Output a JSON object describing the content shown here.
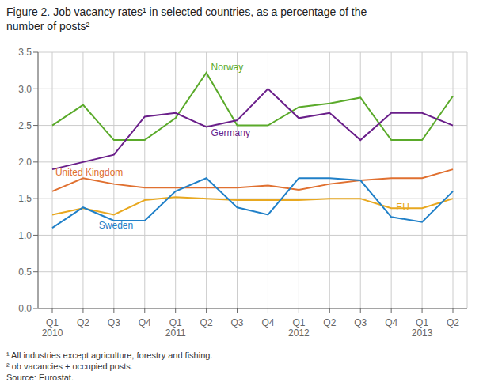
{
  "chart_data": {
    "type": "line",
    "title": "Figure 2. Job vacancy rates¹ in selected countries, as a percentage of the\nnumber of posts²",
    "annotations": [
      "¹ All industries except agriculture, forestry and fishing.",
      "² ob vacancies + occupied posts.",
      "Source: Eurostat."
    ],
    "categories": [
      "Q1\n2010",
      "Q2",
      "Q3",
      "Q4",
      "Q1\n2011",
      "Q2",
      "Q3",
      "Q4",
      "Q1\n2012",
      "Q2",
      "Q3",
      "Q4",
      "Q1\n2013",
      "Q2"
    ],
    "ylim": [
      0.0,
      3.5
    ],
    "yticks": [
      {
        "value": 0.0,
        "label": "0.0"
      },
      0.5,
      {
        "value": 1.0,
        "label": "1.0"
      },
      1.5,
      {
        "value": 2.0,
        "label": "2.0"
      },
      2.5,
      {
        "value": 3.0,
        "label": "3.0"
      },
      3.5
    ],
    "grid": true,
    "series": [
      {
        "name": "Norway",
        "color": "#5aaa2a",
        "values": [
          2.5,
          2.78,
          2.3,
          2.3,
          2.6,
          3.22,
          2.5,
          2.5,
          2.75,
          2.8,
          2.88,
          2.3,
          2.3,
          2.9
        ]
      },
      {
        "name": "Germany",
        "color": "#6a1f8a",
        "values": [
          1.9,
          2.0,
          2.1,
          2.62,
          2.67,
          2.48,
          2.57,
          3.0,
          2.6,
          2.67,
          2.3,
          2.67,
          2.67,
          2.5
        ]
      },
      {
        "name": "United Kingdom",
        "color": "#e07030",
        "values": [
          1.6,
          1.78,
          1.7,
          1.65,
          1.65,
          1.65,
          1.65,
          1.68,
          1.62,
          1.7,
          1.75,
          1.78,
          1.78,
          1.9
        ]
      },
      {
        "name": "EU",
        "color": "#e8a820",
        "values": [
          1.28,
          1.37,
          1.28,
          1.48,
          1.52,
          1.5,
          1.48,
          1.48,
          1.48,
          1.5,
          1.5,
          1.37,
          1.37,
          1.5
        ]
      },
      {
        "name": "Sweden",
        "color": "#2080c8",
        "values": [
          1.1,
          1.38,
          1.2,
          1.2,
          1.6,
          1.78,
          1.38,
          1.28,
          1.78,
          1.78,
          1.75,
          1.25,
          1.18,
          1.6
        ]
      }
    ]
  }
}
